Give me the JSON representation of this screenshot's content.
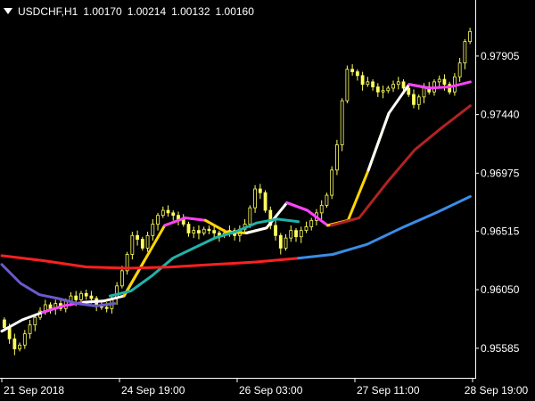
{
  "chart_header": {
    "symbol": "USDCHF,H1",
    "open": "1.00170",
    "high": "1.00214",
    "low": "1.00132",
    "close": "1.00160"
  },
  "chart_data": {
    "type": "candlestick",
    "ylim": [
      0.9535,
      0.9835
    ],
    "y_ticks": [
      "0.97905",
      "0.97440",
      "0.96975",
      "0.96515",
      "0.96050",
      "0.95585"
    ],
    "x_ticks": [
      "21 Sep 2018",
      "24 Sep 19:00",
      "26 Sep 03:00",
      "27 Sep 11:00",
      "28 Sep 19:00"
    ],
    "candle_color": "#ffff60",
    "candles_close": [
      0.9575,
      0.9566,
      0.9558,
      0.9561,
      0.957,
      0.9577,
      0.9583,
      0.9588,
      0.9593,
      0.959,
      0.9594,
      0.959,
      0.9596,
      0.96,
      0.9597,
      0.9602,
      0.96,
      0.9598,
      0.9593,
      0.9591,
      0.959,
      0.9598,
      0.9608,
      0.962,
      0.9633,
      0.9648,
      0.9645,
      0.9638,
      0.9648,
      0.9657,
      0.9664,
      0.9668,
      0.9666,
      0.9664,
      0.9661,
      0.9657,
      0.965,
      0.9652,
      0.965,
      0.9653,
      0.9652,
      0.965,
      0.9648,
      0.965,
      0.9652,
      0.9648,
      0.9653,
      0.9657,
      0.967,
      0.9685,
      0.9682,
      0.9668,
      0.9656,
      0.9648,
      0.9638,
      0.9646,
      0.9652,
      0.9647,
      0.9652,
      0.9655,
      0.966,
      0.9666,
      0.9672,
      0.968,
      0.97,
      0.972,
      0.9755,
      0.978,
      0.9778,
      0.9775,
      0.9768,
      0.977,
      0.9766,
      0.9762,
      0.9763,
      0.9765,
      0.9768,
      0.977,
      0.9765,
      0.976,
      0.9752,
      0.9758,
      0.9766,
      0.9762,
      0.977,
      0.9772,
      0.9768,
      0.9762,
      0.9774,
      0.9785,
      0.9802,
      0.981
    ],
    "ma_lines": [
      {
        "color_segments": [
          "#ffffff",
          "#ff40ff",
          "#ffffff",
          "#ffd700",
          "#ff40ff",
          "#ffd700",
          "#ffffff",
          "#ff40ff",
          "#ffd700",
          "#ffffff",
          "#ff40ff"
        ],
        "values": [
          0.9572,
          0.9581,
          0.9587,
          0.9592,
          0.9595,
          0.9596,
          0.96,
          0.9628,
          0.9656,
          0.9662,
          0.966,
          0.9651,
          0.965,
          0.9654,
          0.9674,
          0.9668,
          0.9656,
          0.966,
          0.97,
          0.9745,
          0.9768,
          0.9765,
          0.9766,
          0.977
        ]
      },
      {
        "color": "#20b2aa",
        "values": [
          0.96,
          0.9604,
          0.9616,
          0.963,
          0.9638,
          0.9646,
          0.9651,
          0.9658,
          0.9661,
          0.9659
        ]
      },
      {
        "color": "#6a5acd",
        "values": [
          0.9625,
          0.961,
          0.9601,
          0.9598,
          0.9594,
          0.9592,
          0.9594
        ]
      },
      {
        "color": "#b22222",
        "values": [
          0.9656,
          0.9662,
          0.969,
          0.9716,
          0.9734,
          0.9751
        ]
      },
      {
        "color": "#ff2020",
        "values": [
          0.9632,
          0.9628,
          0.9623,
          0.9622,
          0.9623,
          0.9625,
          0.9627,
          0.963
        ]
      },
      {
        "color": "#3a8ee6",
        "values": [
          0.963,
          0.9633,
          0.9641,
          0.9654,
          0.9666,
          0.9679
        ]
      }
    ]
  }
}
